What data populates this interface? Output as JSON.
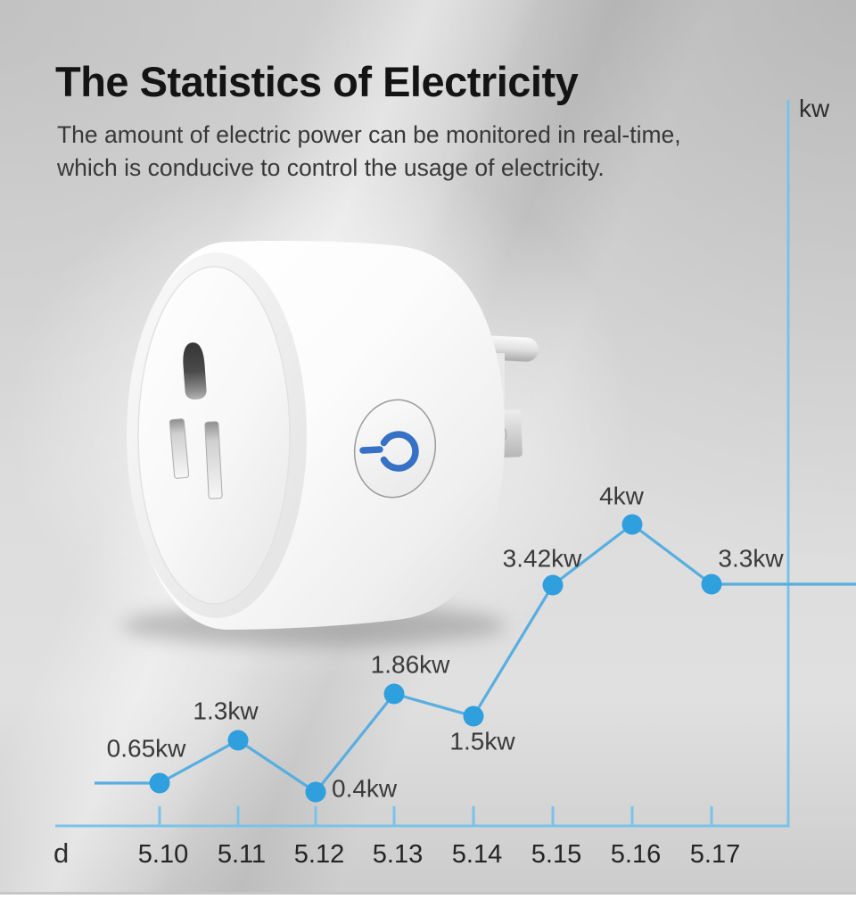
{
  "header": {
    "title": "The Statistics of Electricity",
    "subtitle_line1": "The amount of electric power can be monitored in real-time,",
    "subtitle_line2": "which is conducive to control the usage of electricity."
  },
  "chart_data": {
    "type": "line",
    "x": [
      "5.10",
      "5.11",
      "5.12",
      "5.13",
      "5.14",
      "5.15",
      "5.16",
      "5.17"
    ],
    "values": [
      0.65,
      1.3,
      0.4,
      1.86,
      1.5,
      3.42,
      4,
      3.3
    ],
    "point_labels": [
      "0.65kw",
      "1.3kw",
      "0.4kw",
      "1.86kw",
      "1.5kw",
      "3.42kw",
      "4kw",
      "3.3kw"
    ],
    "title": "",
    "xlabel": "d",
    "ylabel": "kw",
    "grid": false,
    "legend": false,
    "line_color": "#58aee1",
    "point_color": "#2f9fdd",
    "axis_color": "#79c3e9"
  },
  "product_image": {
    "power_button_icon": "power-icon",
    "power_icon_color": "#3671c6"
  },
  "colors": {
    "background": "#d8d8d8",
    "title_text": "#141414",
    "body_text": "#383838",
    "chart_line": "#58aee1",
    "chart_point": "#2f9fdd",
    "chart_axis": "#79c3e9",
    "footer_strip": "#ffffff"
  }
}
